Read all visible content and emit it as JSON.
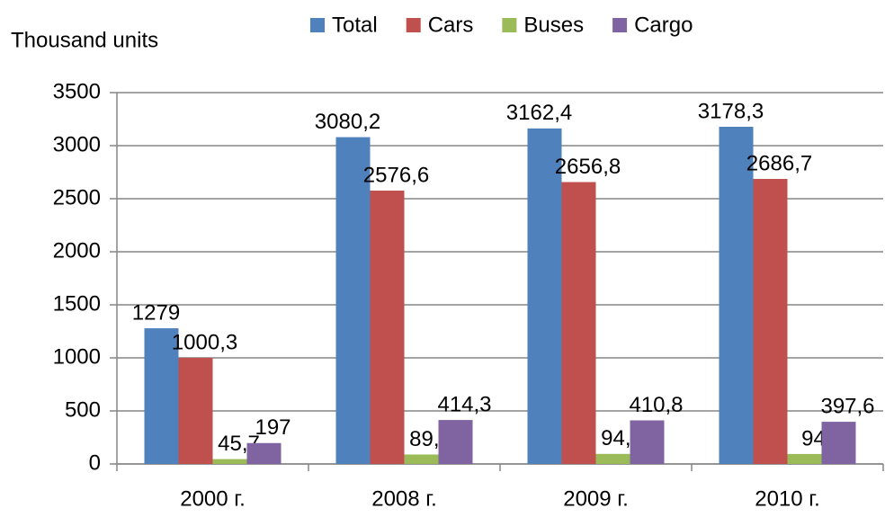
{
  "chart_data": {
    "type": "bar",
    "y_axis_label": "Thousand units",
    "categories": [
      "2000 г.",
      "2008 г.",
      "2009 г.",
      "2010 г."
    ],
    "series": [
      {
        "name": "Total",
        "color": "#4f81bd",
        "values": [
          1279,
          3080.2,
          3162.4,
          3178.3
        ],
        "value_labels": [
          "1279",
          "3080,2",
          "3162,4",
          "3178,3"
        ]
      },
      {
        "name": "Cars",
        "color": "#c0504d",
        "values": [
          1000.3,
          2576.6,
          2656.8,
          2686.7
        ],
        "value_labels": [
          "1000,3",
          "2576,6",
          "2656,8",
          "2686,7"
        ]
      },
      {
        "name": "Buses",
        "color": "#9bbb59",
        "values": [
          45.7,
          89.2,
          94.8,
          94
        ],
        "value_labels": [
          "45,7",
          "89,2",
          "94,8",
          "94"
        ]
      },
      {
        "name": "Cargo",
        "color": "#8064a2",
        "values": [
          197,
          414.3,
          410.8,
          397.6
        ],
        "value_labels": [
          "197",
          "414,3",
          "410,8",
          "397,6"
        ]
      }
    ],
    "ylim": [
      0,
      3500
    ],
    "yticks": [
      0,
      500,
      1000,
      1500,
      2000,
      2500,
      3000,
      3500
    ],
    "grid": true,
    "legend": "top"
  }
}
